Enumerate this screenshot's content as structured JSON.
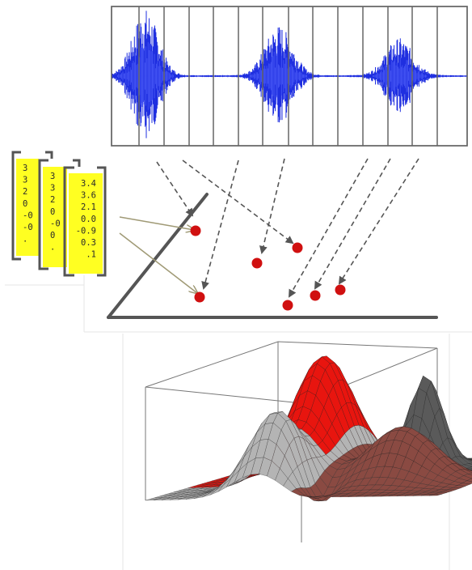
{
  "feature_vector": {
    "values": [
      "3.4",
      "3.6",
      "2.1",
      "0.0",
      "-0.9",
      "0.3",
      ".1"
    ],
    "partial_back": [
      "3",
      "3",
      "2",
      "0",
      "-0",
      "-0",
      "."
    ],
    "partial_mid": [
      "3",
      "3",
      "2",
      "0",
      "-0",
      "0",
      "."
    ]
  },
  "colors": {
    "waveform": "#1f2fe0",
    "point": "#d01010",
    "axis": "#555555",
    "vector_highlight": "#ffff22",
    "surface_red": "#e8150f",
    "surface_gray": "#b4b4b4",
    "surface_brown": "#8a4a42",
    "surface_dark": "#5a5a5a"
  },
  "icons": [
    "waveform-panel",
    "scatter-plot",
    "surface-plot",
    "arrow"
  ]
}
